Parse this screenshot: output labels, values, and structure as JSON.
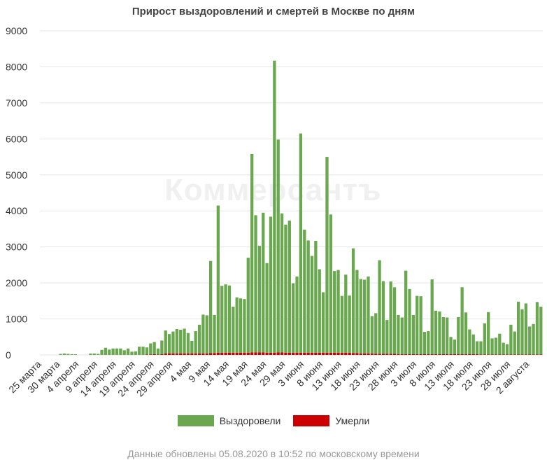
{
  "title": "Прирост выздоровлений и смертей в Москве по дням",
  "watermark": "Коммерсантъ",
  "footer": "Данные обновлены 05.08.2020 в 10:52 по московскому времени",
  "colors": {
    "recovered": "#6aa84f",
    "died": "#cc0000",
    "grid": "#e6e6e6"
  },
  "chart_data": {
    "type": "bar",
    "stacked": true,
    "title": "Прирост выздоровлений и смертей в Москве по дням",
    "ylim": [
      0,
      9000
    ],
    "yticks": [
      0,
      1000,
      2000,
      3000,
      4000,
      5000,
      6000,
      7000,
      8000,
      9000
    ],
    "grid": true,
    "legend_position": "bottom",
    "start_date": "2020-03-25",
    "x_tick_labels": [
      "25 марта",
      "30 марта",
      "4 апреля",
      "9 апреля",
      "14 апреля",
      "19 апреля",
      "24 апреля",
      "29 апреля",
      "4 мая",
      "9 мая",
      "14 мая",
      "19 мая",
      "24 мая",
      "29 мая",
      "3 июня",
      "8 июня",
      "13 июня",
      "18 июня",
      "23 июня",
      "28 июня",
      "3 июля",
      "8 июля",
      "13 июля",
      "18 июля",
      "23 июля",
      "28 июля",
      "2 августа"
    ],
    "series": [
      {
        "name": "Выздоровели",
        "color": "#6aa84f",
        "values": [
          0,
          0,
          0,
          0,
          0,
          30,
          40,
          30,
          20,
          20,
          0,
          0,
          0,
          40,
          40,
          30,
          140,
          200,
          150,
          180,
          180,
          180,
          130,
          180,
          90,
          100,
          230,
          230,
          200,
          310,
          340,
          170,
          380,
          640,
          540,
          610,
          680,
          660,
          690,
          570,
          350,
          620,
          800,
          1080,
          1060,
          2560,
          1060,
          4090,
          1860,
          1900,
          1870,
          1280,
          1540,
          1510,
          1490,
          2640,
          5510,
          3810,
          2960,
          3880,
          2490,
          3780,
          8110,
          5910,
          3860,
          3560,
          3670,
          1930,
          2120,
          6090,
          3420,
          3120,
          2690,
          3110,
          2320,
          1680,
          5440,
          3840,
          2270,
          2300,
          1580,
          2170,
          1590,
          2910,
          2310,
          2070,
          2050,
          2140,
          1040,
          1130,
          2600,
          2020,
          940,
          2010,
          1850,
          1090,
          1020,
          2320,
          1810,
          1090,
          1620,
          1610,
          620,
          640,
          2080,
          1210,
          1190,
          1030,
          1020,
          480,
          410,
          1030,
          1860,
          1160,
          690,
          550,
          360,
          370,
          870,
          1180,
          450,
          470,
          580,
          330,
          290,
          830,
          640,
          1470,
          1260,
          1420,
          780,
          850,
          1460,
          1330
        ]
      },
      {
        "name": "Умерли",
        "color": "#cc0000",
        "values": [
          0,
          0,
          0,
          0,
          0,
          0,
          0,
          0,
          0,
          0,
          0,
          0,
          0,
          0,
          0,
          0,
          0,
          0,
          0,
          0,
          0,
          0,
          0,
          0,
          0,
          0,
          0,
          0,
          10,
          10,
          20,
          10,
          20,
          40,
          40,
          40,
          40,
          40,
          40,
          40,
          40,
          40,
          40,
          40,
          40,
          50,
          50,
          60,
          60,
          60,
          60,
          60,
          60,
          60,
          60,
          60,
          70,
          70,
          70,
          70,
          60,
          60,
          60,
          70,
          70,
          60,
          60,
          60,
          60,
          60,
          60,
          60,
          60,
          60,
          60,
          60,
          60,
          60,
          60,
          60,
          60,
          60,
          60,
          50,
          50,
          40,
          40,
          40,
          40,
          30,
          30,
          30,
          30,
          30,
          30,
          20,
          20,
          20,
          20,
          20,
          20,
          20,
          20,
          20,
          20,
          20,
          20,
          20,
          20,
          20,
          20,
          20,
          20,
          20,
          20,
          20,
          20,
          10,
          10,
          10,
          10,
          10,
          10,
          10,
          10,
          10,
          10,
          10,
          10,
          10,
          10,
          10,
          10,
          10,
          10,
          10
        ]
      }
    ]
  }
}
